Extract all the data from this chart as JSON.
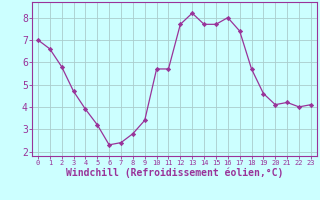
{
  "x": [
    0,
    1,
    2,
    3,
    4,
    5,
    6,
    7,
    8,
    9,
    10,
    11,
    12,
    13,
    14,
    15,
    16,
    17,
    18,
    19,
    20,
    21,
    22,
    23
  ],
  "y": [
    7.0,
    6.6,
    5.8,
    4.7,
    3.9,
    3.2,
    2.3,
    2.4,
    2.8,
    3.4,
    5.7,
    5.7,
    7.7,
    8.2,
    7.7,
    7.7,
    8.0,
    7.4,
    5.7,
    4.6,
    4.1,
    4.2,
    4.0,
    4.1
  ],
  "line_color": "#993399",
  "marker": "D",
  "marker_size": 2.2,
  "bg_color": "#ccffff",
  "grid_color": "#aacccc",
  "xlabel": "Windchill (Refroidissement éolien,°C)",
  "xlabel_color": "#993399",
  "xlabel_fontsize": 7,
  "ylabel_ticks": [
    2,
    3,
    4,
    5,
    6,
    7,
    8
  ],
  "xticks": [
    0,
    1,
    2,
    3,
    4,
    5,
    6,
    7,
    8,
    9,
    10,
    11,
    12,
    13,
    14,
    15,
    16,
    17,
    18,
    19,
    20,
    21,
    22,
    23
  ],
  "xlim": [
    -0.5,
    23.5
  ],
  "ylim": [
    1.8,
    8.7
  ],
  "tick_color": "#993399",
  "ytick_fontsize": 7,
  "xtick_fontsize": 5,
  "spine_color": "#993399",
  "linewidth": 0.9
}
